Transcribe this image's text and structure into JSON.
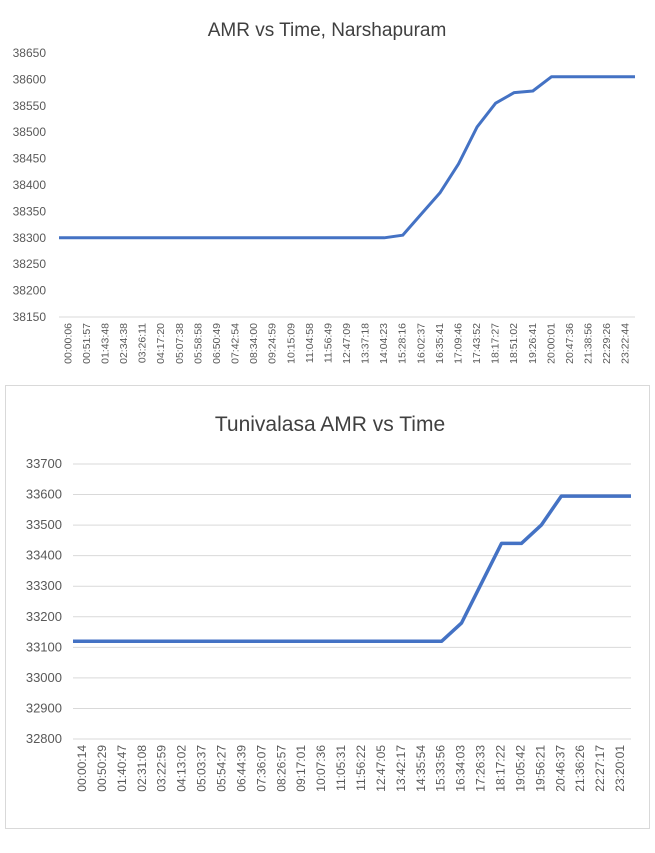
{
  "chart_data": [
    {
      "type": "line",
      "title": "AMR vs Time, Narshapuram",
      "xlabel": "",
      "ylabel": "",
      "ylim": [
        38150,
        38650
      ],
      "yticks": [
        38150,
        38200,
        38250,
        38300,
        38350,
        38400,
        38450,
        38500,
        38550,
        38600,
        38650
      ],
      "grid": false,
      "color": "#4472c4",
      "categories": [
        "00:00:06",
        "00:51:57",
        "01:43:48",
        "02:34:38",
        "03:26:11",
        "04:17:20",
        "05:07:38",
        "05:58:58",
        "06:50:49",
        "07:42:54",
        "08:34:00",
        "09:24:59",
        "10:15:09",
        "11:04:58",
        "11:56:49",
        "12:47:09",
        "13:37:18",
        "14:04:23",
        "15:28:16",
        "16:02:37",
        "16:35:41",
        "17:09:46",
        "17:43:52",
        "18:17:27",
        "18:51:02",
        "19:26:41",
        "20:00:01",
        "20:47:36",
        "21:38:56",
        "22:29:26",
        "23:22:44"
      ],
      "series": [
        {
          "values": [
            38300,
            38300,
            38300,
            38300,
            38300,
            38300,
            38300,
            38300,
            38300,
            38300,
            38300,
            38300,
            38300,
            38300,
            38300,
            38300,
            38300,
            38300,
            38305,
            38345,
            38385,
            38440,
            38510,
            38555,
            38575,
            38578,
            38605,
            38605,
            38605,
            38605,
            38605
          ]
        }
      ]
    },
    {
      "type": "line",
      "title": "Tunivalasa AMR vs Time",
      "xlabel": "",
      "ylabel": "",
      "ylim": [
        32800,
        33700
      ],
      "yticks": [
        32800,
        32900,
        33000,
        33100,
        33200,
        33300,
        33400,
        33500,
        33600,
        33700
      ],
      "grid": true,
      "color": "#4472c4",
      "categories": [
        "00:00:14",
        "00:50:29",
        "01:40:47",
        "02:31:08",
        "03:22:59",
        "04:13:02",
        "05:03:37",
        "05:54:27",
        "06:44:39",
        "07:36:07",
        "08:26:57",
        "09:17:01",
        "10:07:36",
        "11:05:31",
        "11:56:22",
        "12:47:05",
        "13:42:17",
        "14:35:54",
        "15:33:56",
        "16:34:03",
        "17:26:33",
        "18:17:22",
        "19:05:42",
        "19:56:21",
        "20:46:37",
        "21:36:26",
        "22:27:17",
        "23:20:01"
      ],
      "series": [
        {
          "values": [
            33120,
            33120,
            33120,
            33120,
            33120,
            33120,
            33120,
            33120,
            33120,
            33120,
            33120,
            33120,
            33120,
            33120,
            33120,
            33120,
            33120,
            33120,
            33120,
            33180,
            33310,
            33440,
            33440,
            33500,
            33595,
            33595,
            33595,
            33595
          ]
        }
      ]
    }
  ]
}
